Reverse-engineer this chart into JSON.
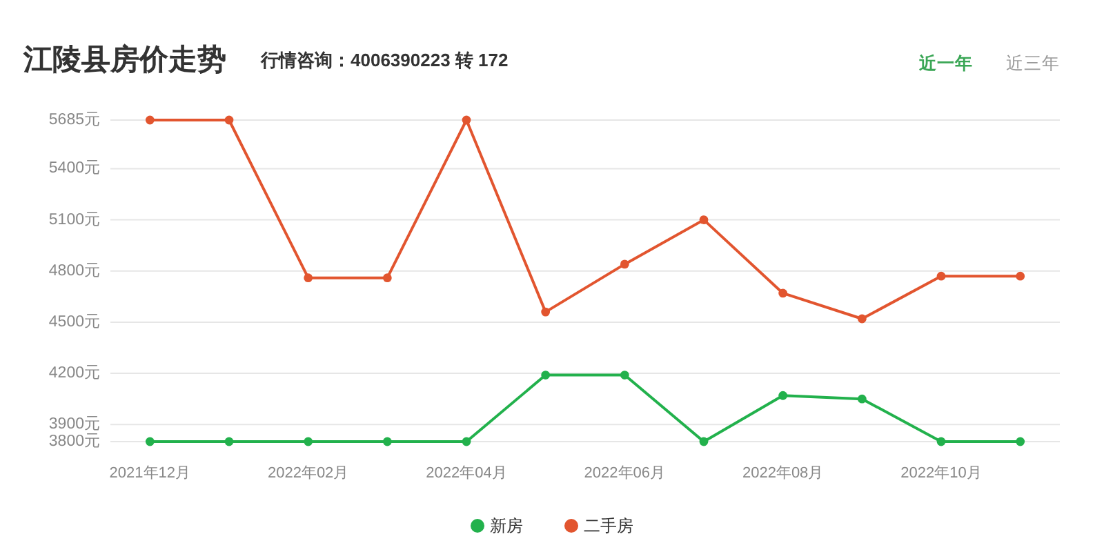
{
  "chart_data": {
    "type": "line",
    "title": "江陵县房价走势",
    "subtitle": "行情咨询：4006390223 转 172",
    "annotations": [
      "近一年",
      "近三年"
    ],
    "categories": [
      "2021年12月",
      null,
      "2022年02月",
      null,
      "2022年04月",
      null,
      "2022年06月",
      null,
      "2022年08月",
      null,
      "2022年10月",
      null
    ],
    "series": [
      {
        "name": "新房",
        "color": "#22b14c",
        "values": [
          3800,
          3800,
          3800,
          3800,
          3800,
          4190,
          4190,
          3800,
          4070,
          4050,
          3800,
          3800
        ]
      },
      {
        "name": "二手房",
        "color": "#e2552f",
        "values": [
          5685,
          5685,
          4760,
          4760,
          5685,
          4560,
          4840,
          5100,
          4670,
          4520,
          4770,
          4770
        ]
      }
    ],
    "ylim": [
      3800,
      5685
    ],
    "yticks": [
      {
        "value": 3800,
        "label": "3800元"
      },
      {
        "value": 3900,
        "label": "3900元"
      },
      {
        "value": 4200,
        "label": "4200元"
      },
      {
        "value": 4500,
        "label": "4500元"
      },
      {
        "value": 4800,
        "label": "4800元"
      },
      {
        "value": 5100,
        "label": "5100元"
      },
      {
        "value": 5400,
        "label": "5400元"
      },
      {
        "value": 5685,
        "label": "5685元"
      }
    ],
    "grid": "y",
    "legend": "bottom",
    "marker": "circle"
  }
}
